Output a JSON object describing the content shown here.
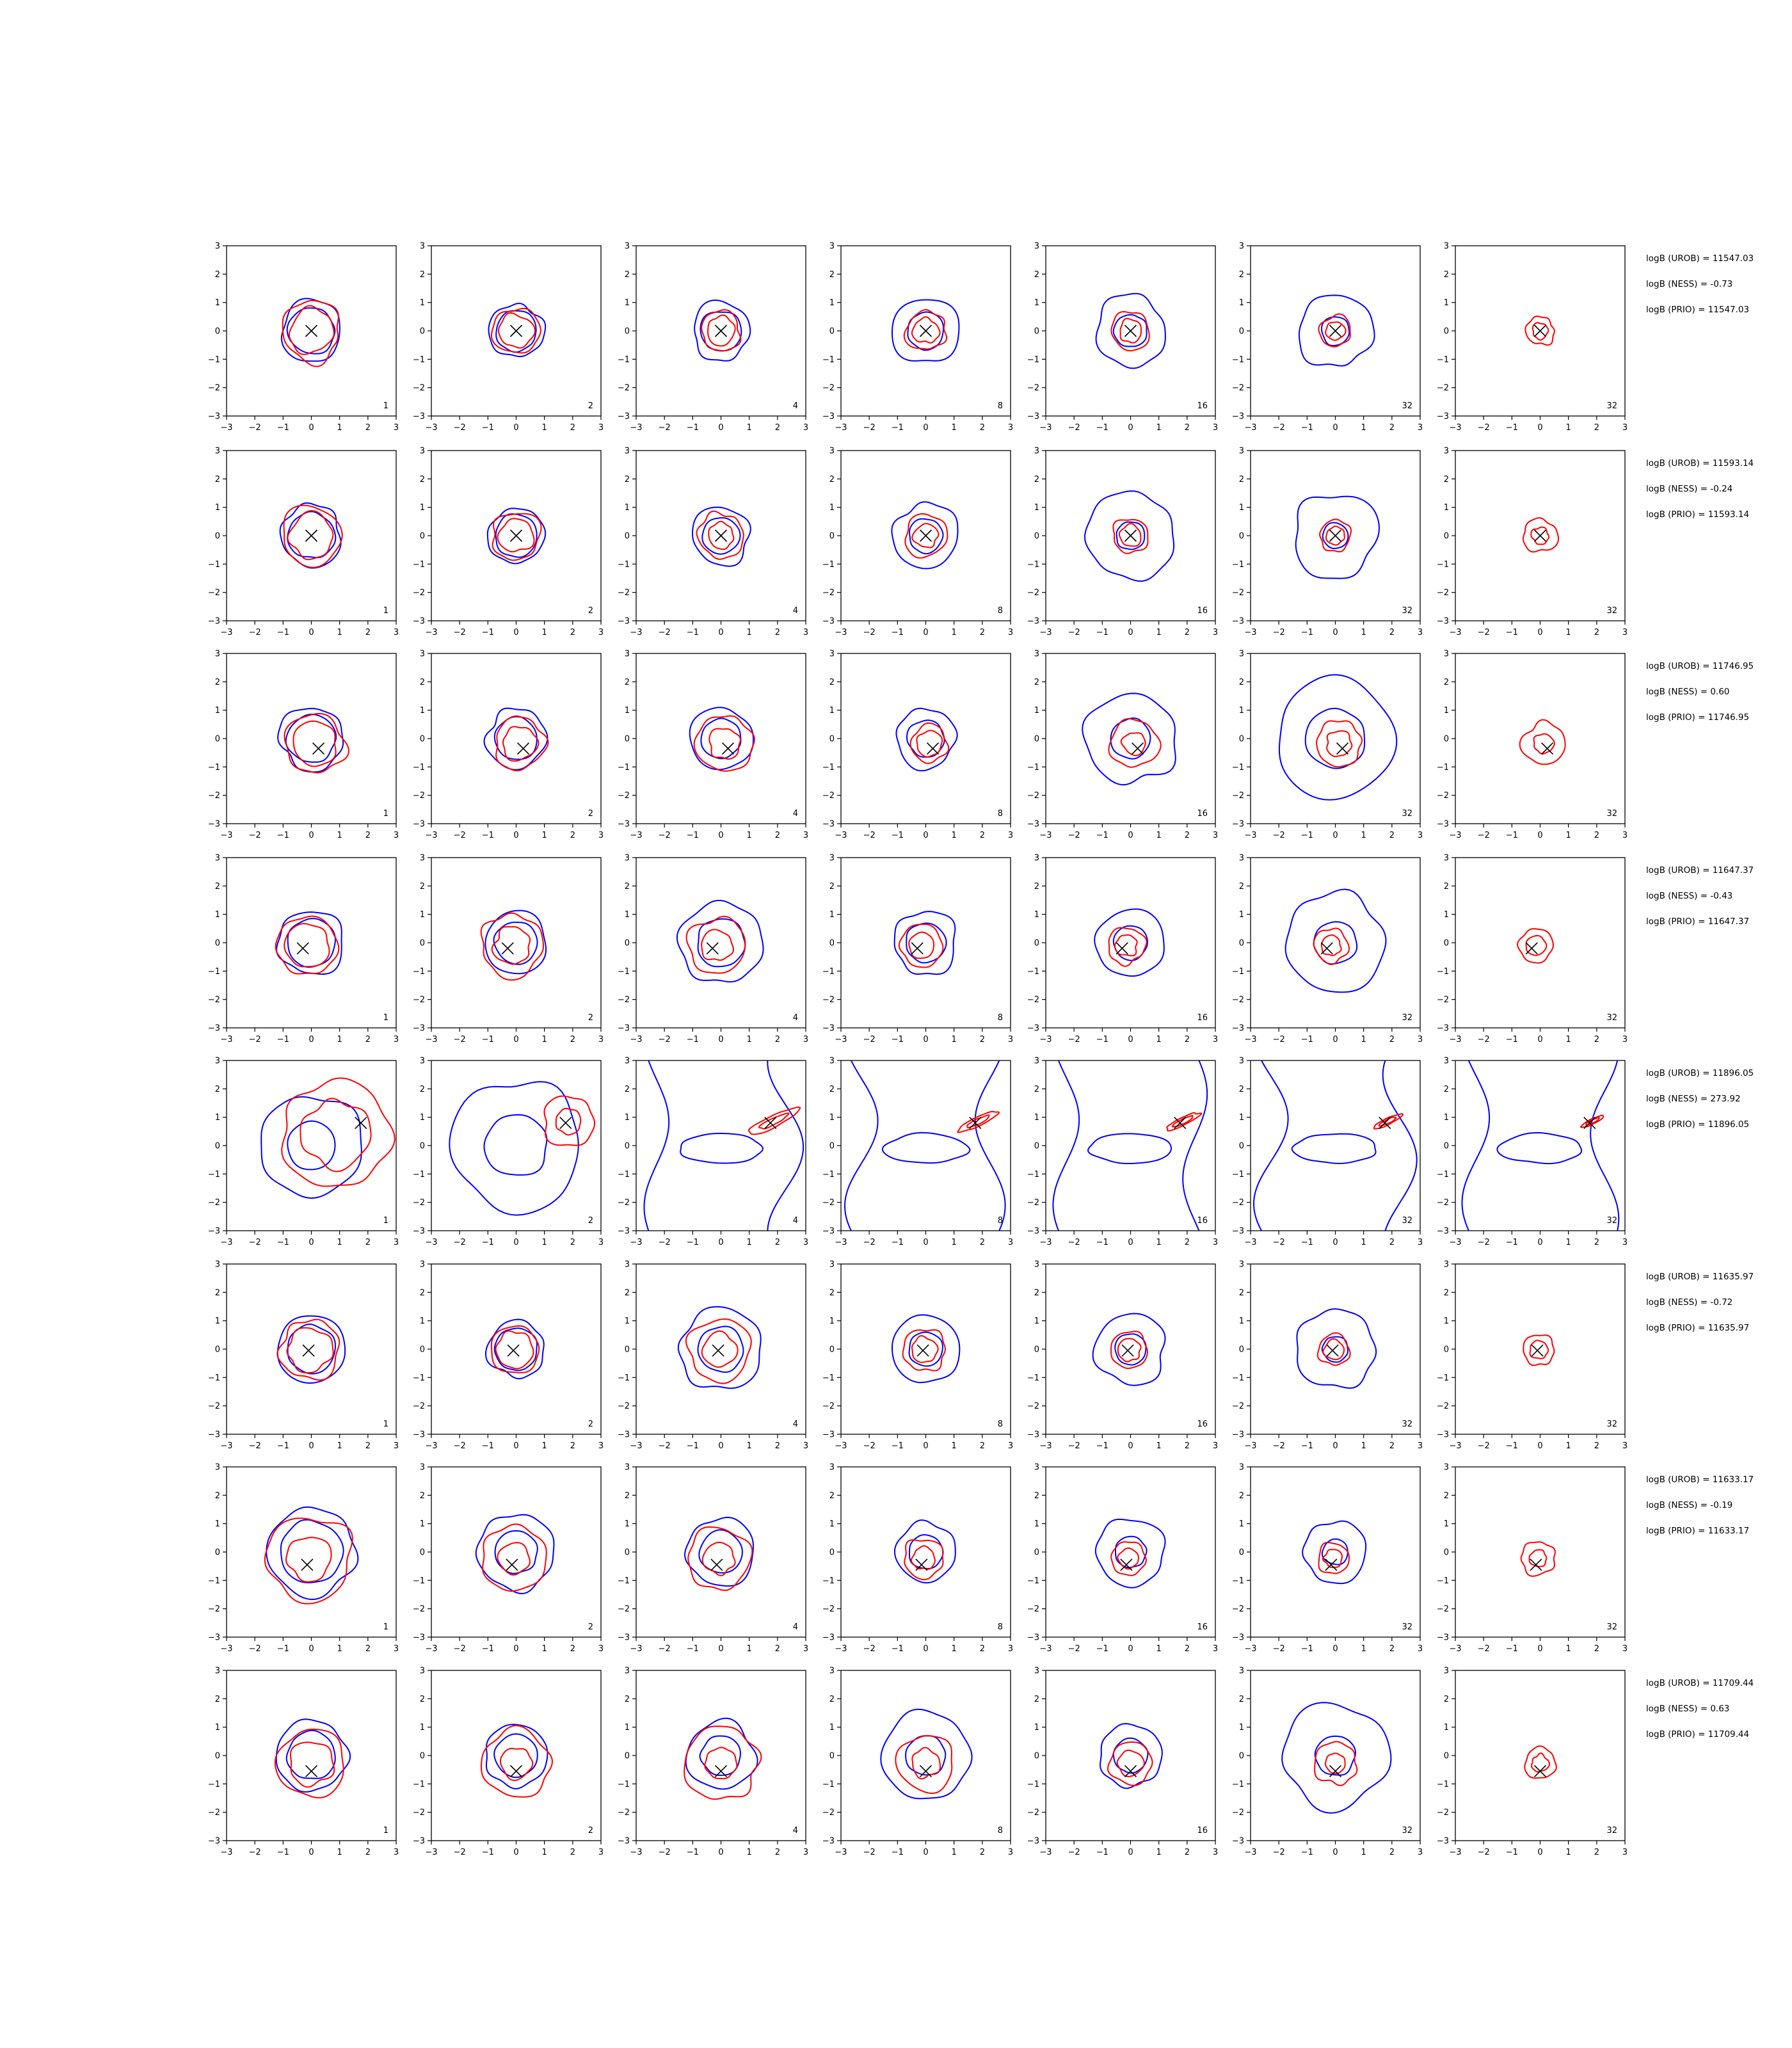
{
  "figure": {
    "axis_range": [
      -3,
      3
    ],
    "tick_labels": [
      "−3",
      "−2",
      "−1",
      "0",
      "1",
      "2",
      "3"
    ],
    "colors": {
      "outer_contour": "#0000ff",
      "inner_contour": "#ff0000",
      "marker": "#000000",
      "axes": "#000000"
    }
  },
  "chart_data": [
    {
      "row": 1,
      "type": "contour-grid",
      "panel_labels": [
        "1",
        "2",
        "4",
        "8",
        "16",
        "32",
        "32"
      ],
      "marker": [
        0.0,
        0.0
      ],
      "blue_levels": [
        [
          0.82,
          1.08
        ],
        [
          0.72,
          0.95
        ],
        [
          0.72,
          1.02
        ],
        [
          0.65,
          1.18
        ],
        [
          0.58,
          1.25
        ],
        [
          0.5,
          1.3
        ],
        [
          0.0,
          0.0
        ]
      ],
      "red_levels": [
        [
          0.78,
          1.05
        ],
        [
          0.6,
          0.82
        ],
        [
          0.5,
          0.7
        ],
        [
          0.45,
          0.7
        ],
        [
          0.4,
          0.68
        ],
        [
          0.33,
          0.55
        ],
        [
          0.28,
          0.5
        ]
      ],
      "annotations": [
        "logB (UROB) = 11547.03",
        "logB (NESS) = -0.73",
        "logB (PRIO) = 11547.03"
      ]
    },
    {
      "row": 2,
      "type": "contour-grid",
      "panel_labels": [
        "1",
        "2",
        "4",
        "8",
        "16",
        "32",
        "32"
      ],
      "marker": [
        0.0,
        0.0
      ],
      "blue_levels": [
        [
          0.82,
          1.08
        ],
        [
          0.75,
          0.98
        ],
        [
          0.65,
          1.02
        ],
        [
          0.6,
          1.15
        ],
        [
          0.5,
          1.55
        ],
        [
          0.45,
          1.5
        ],
        [
          0.0,
          0.0
        ]
      ],
      "red_levels": [
        [
          0.78,
          1.05
        ],
        [
          0.6,
          0.85
        ],
        [
          0.45,
          0.8
        ],
        [
          0.42,
          0.75
        ],
        [
          0.38,
          0.62
        ],
        [
          0.32,
          0.55
        ],
        [
          0.3,
          0.6
        ]
      ],
      "annotations": [
        "logB (UROB) = 11593.14",
        "logB (NESS) = -0.24",
        "logB (PRIO) = 11593.14"
      ]
    },
    {
      "row": 3,
      "type": "contour-grid",
      "panel_labels": [
        "1",
        "2",
        "4",
        "8",
        "16",
        "32",
        "32"
      ],
      "marker": [
        0.25,
        -0.35
      ],
      "blue_levels": [
        [
          0.85,
          1.12
        ],
        [
          0.75,
          1.05
        ],
        [
          0.7,
          1.1
        ],
        [
          0.65,
          1.05
        ],
        [
          0.7,
          1.6
        ],
        [
          1.05,
          2.1
        ],
        [
          0.0,
          0.0
        ]
      ],
      "red_levels": [
        [
          0.78,
          1.05
        ],
        [
          0.6,
          0.9
        ],
        [
          0.55,
          1.0
        ],
        [
          0.45,
          0.65
        ],
        [
          0.4,
          0.85
        ],
        [
          0.45,
          0.8
        ],
        [
          0.35,
          0.75
        ]
      ],
      "annotations": [
        "logB (UROB) = 11746.95",
        "logB (NESS) = 0.60",
        "logB (PRIO) = 11746.95"
      ]
    },
    {
      "row": 4,
      "type": "contour-grid",
      "panel_labels": [
        "1",
        "2",
        "4",
        "8",
        "16",
        "32",
        "32"
      ],
      "marker": [
        -0.3,
        -0.2
      ],
      "blue_levels": [
        [
          0.85,
          1.15
        ],
        [
          0.75,
          1.1
        ],
        [
          0.85,
          1.45
        ],
        [
          0.7,
          1.12
        ],
        [
          0.6,
          1.2
        ],
        [
          0.75,
          1.75
        ],
        [
          0.0,
          0.0
        ]
      ],
      "red_levels": [
        [
          0.78,
          1.05
        ],
        [
          0.65,
          1.1
        ],
        [
          0.55,
          1.0
        ],
        [
          0.45,
          0.75
        ],
        [
          0.38,
          0.65
        ],
        [
          0.35,
          0.6
        ],
        [
          0.35,
          0.6
        ]
      ],
      "annotations": [
        "logB (UROB) = 11647.37",
        "logB (NESS) = -0.43",
        "logB (PRIO) = 11647.37"
      ]
    },
    {
      "row": 5,
      "type": "contour-grid",
      "panel_labels": [
        "1",
        "2",
        "4",
        "8",
        "16",
        "32",
        "32"
      ],
      "marker": [
        1.75,
        0.8
      ],
      "blue_levels": [
        [
          0.85,
          1.8
        ],
        [
          1.1,
          2.3
        ],
        [
          0.0,
          0.0
        ],
        [
          0.0,
          0.0
        ],
        [
          0.0,
          0.0
        ],
        [
          0.0,
          0.0
        ],
        [
          0.0,
          0.0
        ]
      ],
      "red_levels": [
        [
          1.2,
          1.9
        ],
        [
          0.45,
          0.9
        ],
        [
          0.25,
          0.45
        ],
        [
          0.2,
          0.35
        ],
        [
          0.18,
          0.3
        ],
        [
          0.15,
          0.25
        ],
        [
          0.12,
          0.2
        ]
      ],
      "annotations": [
        "logB (UROB) = 11896.05",
        "logB (NESS) = 273.92",
        "logB (PRIO) = 11896.05"
      ]
    },
    {
      "row": 6,
      "type": "contour-grid",
      "panel_labels": [
        "1",
        "2",
        "4",
        "8",
        "16",
        "32",
        "32"
      ],
      "marker": [
        -0.1,
        -0.05
      ],
      "blue_levels": [
        [
          0.85,
          1.2
        ],
        [
          0.75,
          1.0
        ],
        [
          0.8,
          1.45
        ],
        [
          0.6,
          1.2
        ],
        [
          0.55,
          1.25
        ],
        [
          0.45,
          1.4
        ],
        [
          0.0,
          0.0
        ]
      ],
      "red_levels": [
        [
          0.78,
          1.05
        ],
        [
          0.65,
          0.85
        ],
        [
          0.6,
          1.1
        ],
        [
          0.45,
          0.75
        ],
        [
          0.4,
          0.65
        ],
        [
          0.35,
          0.55
        ],
        [
          0.32,
          0.55
        ]
      ],
      "annotations": [
        "logB (UROB) = 11635.97",
        "logB (NESS) = -0.72",
        "logB (PRIO) = 11635.97"
      ]
    },
    {
      "row": 7,
      "type": "contour-grid",
      "panel_labels": [
        "1",
        "2",
        "4",
        "8",
        "16",
        "32",
        "32"
      ],
      "marker": [
        -0.15,
        -0.45
      ],
      "blue_levels": [
        [
          1.1,
          1.55
        ],
        [
          0.75,
          1.35
        ],
        [
          0.75,
          1.2
        ],
        [
          0.6,
          1.05
        ],
        [
          0.55,
          1.2
        ],
        [
          0.45,
          1.1
        ],
        [
          0.0,
          0.0
        ]
      ],
      "red_levels": [
        [
          0.78,
          1.5
        ],
        [
          0.55,
          1.15
        ],
        [
          0.55,
          1.1
        ],
        [
          0.4,
          0.7
        ],
        [
          0.35,
          0.6
        ],
        [
          0.32,
          0.55
        ],
        [
          0.3,
          0.6
        ]
      ],
      "annotations": [
        "logB (UROB) = 11633.17",
        "logB (NESS) = -0.19",
        "logB (PRIO) = 11633.17"
      ]
    },
    {
      "row": 8,
      "type": "contour-grid",
      "panel_labels": [
        "1",
        "2",
        "4",
        "8",
        "16",
        "32",
        "32"
      ],
      "marker": [
        0.0,
        -0.55
      ],
      "blue_levels": [
        [
          0.85,
          1.25
        ],
        [
          0.75,
          1.1
        ],
        [
          0.7,
          1.2
        ],
        [
          0.7,
          1.55
        ],
        [
          0.6,
          1.1
        ],
        [
          0.7,
          1.85
        ],
        [
          0.0,
          0.0
        ]
      ],
      "red_levels": [
        [
          0.78,
          1.2
        ],
        [
          0.55,
          1.2
        ],
        [
          0.55,
          1.3
        ],
        [
          0.5,
          1.0
        ],
        [
          0.45,
          0.75
        ],
        [
          0.35,
          0.75
        ],
        [
          0.3,
          0.55
        ]
      ],
      "annotations": [
        "logB (UROB) = 11709.44",
        "logB (NESS) = 0.63",
        "logB (PRIO) = 11709.44"
      ]
    }
  ]
}
